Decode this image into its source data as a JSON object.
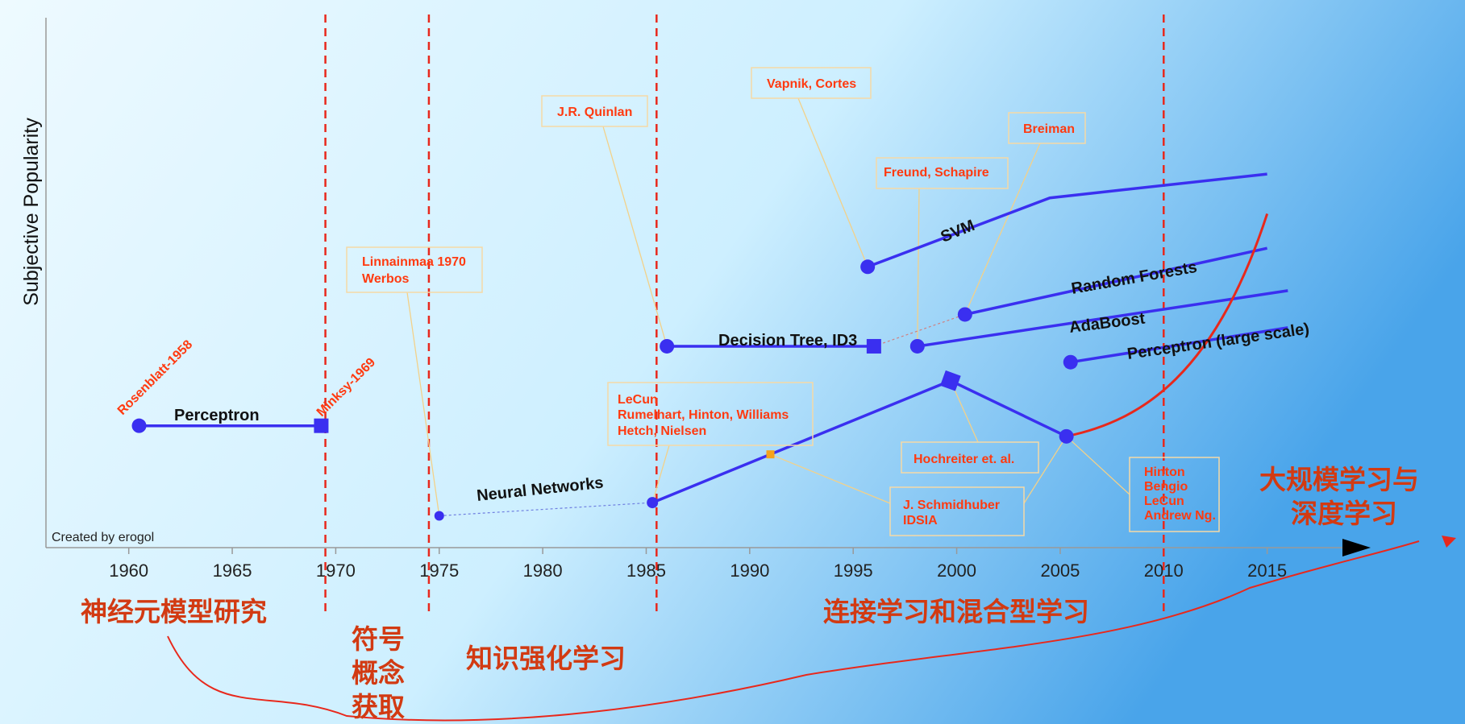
{
  "colors": {
    "series": "#3a2ff0",
    "divider": "#e8281c",
    "annotation": "#ff3a10",
    "era_text": "#d23a12",
    "bg_left": "#eefaff",
    "bg_right": "#49a4ea"
  },
  "chart_data": {
    "type": "line",
    "ylabel": "Subjective Popularity",
    "credit": "Created by erogol",
    "x_ticks": [
      "1960",
      "1965",
      "1970",
      "1975",
      "1980",
      "1985",
      "1990",
      "1995",
      "2000",
      "2005",
      "2010",
      "2015"
    ],
    "xlim": [
      1956,
      2020
    ],
    "ylim": [
      0,
      100
    ],
    "era_dividers": [
      1969.5,
      1974.5,
      1985.5,
      2010
    ],
    "series": [
      {
        "name": "Perceptron",
        "points": [
          [
            1960.5,
            23
          ],
          [
            1969.3,
            23
          ]
        ],
        "start_marker": "circle",
        "end_marker": "square"
      },
      {
        "name": "Neural Networks",
        "points": [
          [
            1975,
            6
          ],
          [
            1985.3,
            8.5
          ]
        ],
        "dashed": true
      },
      {
        "name": "",
        "points": [
          [
            1985.3,
            8.5
          ],
          [
            1999.7,
            31.5
          ],
          [
            2005.3,
            21
          ]
        ]
      },
      {
        "name": "Decision Tree, ID3",
        "points": [
          [
            1986,
            38
          ],
          [
            1996,
            38
          ]
        ],
        "end_marker": "square"
      },
      {
        "name": "SVM",
        "points": [
          [
            1995.7,
            53
          ],
          [
            2004.5,
            66
          ],
          [
            2015,
            70.5
          ]
        ]
      },
      {
        "name": "Random Forests",
        "points": [
          [
            2000.4,
            44
          ],
          [
            2015,
            56.5
          ]
        ]
      },
      {
        "name": "AdaBoost",
        "points": [
          [
            1998.1,
            38
          ],
          [
            2016,
            48.5
          ]
        ]
      },
      {
        "name": "Perceptron (large scale)",
        "points": [
          [
            2005.5,
            35
          ],
          [
            2016,
            41.5
          ]
        ]
      },
      {
        "name": "",
        "points": [
          [
            2005.3,
            21
          ],
          [
            2009,
            24
          ],
          [
            2012.5,
            33
          ],
          [
            2015,
            63
          ]
        ],
        "style": "deep-learning-curve"
      }
    ],
    "annotations": [
      {
        "text": "Rosenblatt-1958"
      },
      {
        "text": "Minksy-1969"
      },
      {
        "text": "Linnainmaa 1970"
      },
      {
        "text": "Werbos"
      },
      {
        "text": "J.R. Quinlan"
      },
      {
        "text": "Vapnik, Cortes"
      },
      {
        "text": "Breiman"
      },
      {
        "text": "Freund, Schapire"
      },
      {
        "text": "LeCun"
      },
      {
        "text": "Rumelhart, Hinton, Williams"
      },
      {
        "text": "Hetch, Nielsen"
      },
      {
        "text": "Hochreiter et. al."
      },
      {
        "text": "J. Schmidhuber"
      },
      {
        "text": "IDSIA"
      },
      {
        "text": "Hinton"
      },
      {
        "text": "Bengio"
      },
      {
        "text": "LeCun"
      },
      {
        "text": "Andrew Ng."
      }
    ],
    "eras": [
      {
        "lines": [
          "神经元模型研究"
        ]
      },
      {
        "lines": [
          "符号",
          "概念",
          "获取"
        ]
      },
      {
        "lines": [
          "知识强化学习"
        ]
      },
      {
        "lines": [
          "连接学习和混合型学习"
        ]
      },
      {
        "lines": [
          "大规模学习与",
          "深度学习"
        ]
      }
    ]
  }
}
